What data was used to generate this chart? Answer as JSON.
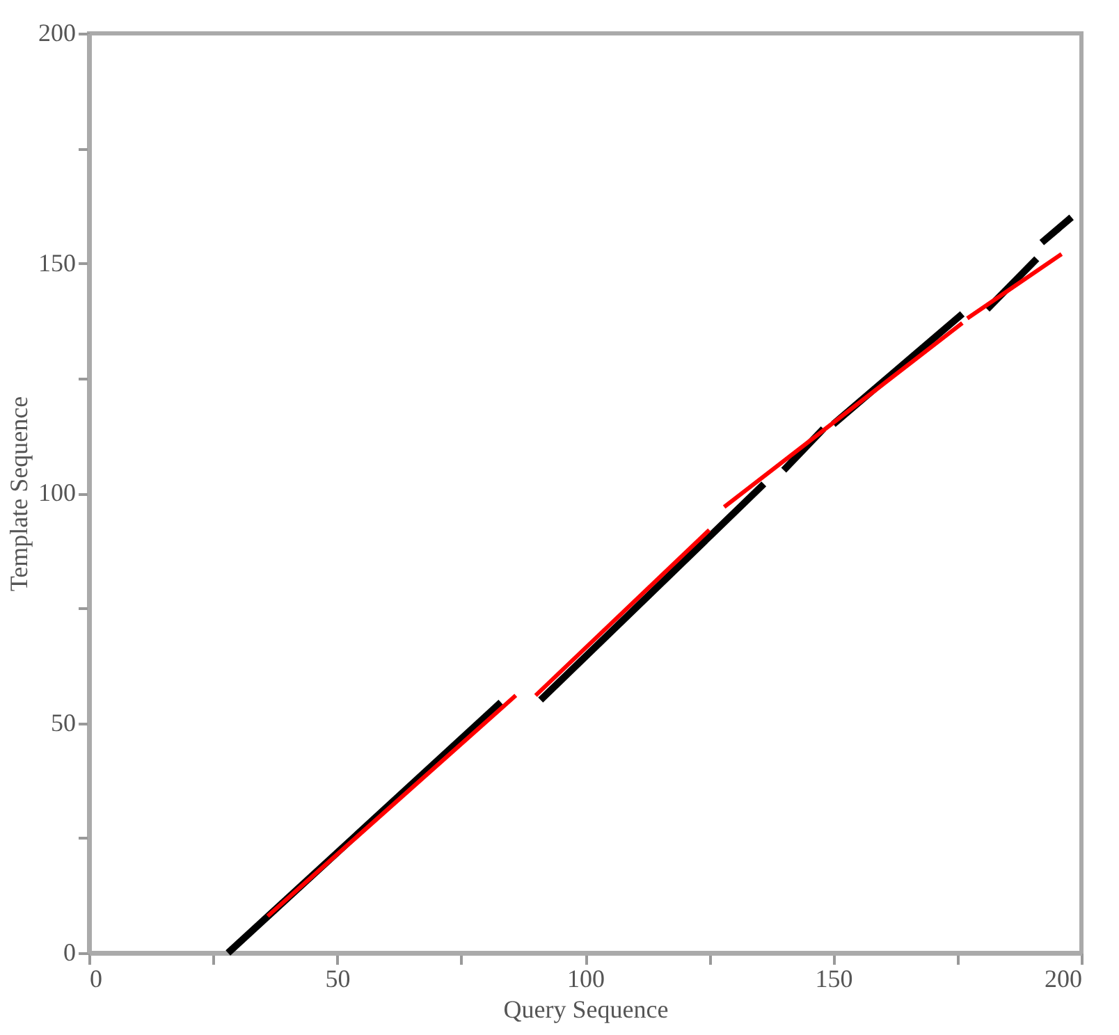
{
  "chart_data": {
    "type": "line",
    "xlabel": "Query Sequence",
    "ylabel": "Template Sequence",
    "xlim": [
      0,
      200
    ],
    "ylim": [
      0,
      200
    ],
    "xticks": [
      0,
      {
        "value": 25,
        "label": null
      },
      50,
      {
        "value": 75,
        "label": null
      },
      100,
      {
        "value": 125,
        "label": null
      },
      150,
      {
        "value": 175,
        "label": null
      },
      200
    ],
    "yticks": [
      0,
      {
        "value": 25,
        "label": null
      },
      50,
      {
        "value": 75,
        "label": null
      },
      100,
      {
        "value": 125,
        "label": null
      },
      150,
      {
        "value": 175,
        "label": null
      },
      200
    ],
    "grid": false,
    "legend": false,
    "marker": "none",
    "line_style": "solid",
    "series": [
      {
        "color": "#000000",
        "x": [
          28,
          83,
          87,
          91,
          136,
          138,
          140,
          148,
          149,
          150,
          176,
          178,
          181,
          191,
          191.5,
          192,
          198
        ],
        "values": [
          0,
          54.5,
          null,
          55,
          102,
          null,
          105,
          114,
          null,
          115,
          139,
          null,
          140,
          151,
          null,
          154.5,
          160
        ]
      },
      {
        "color": "#ff0000",
        "x": [
          36,
          86,
          88,
          90,
          125,
          126.5,
          128,
          176,
          176.5,
          177,
          196
        ],
        "values": [
          8,
          56,
          null,
          56,
          92,
          null,
          97,
          137,
          null,
          138,
          152
        ]
      }
    ]
  }
}
